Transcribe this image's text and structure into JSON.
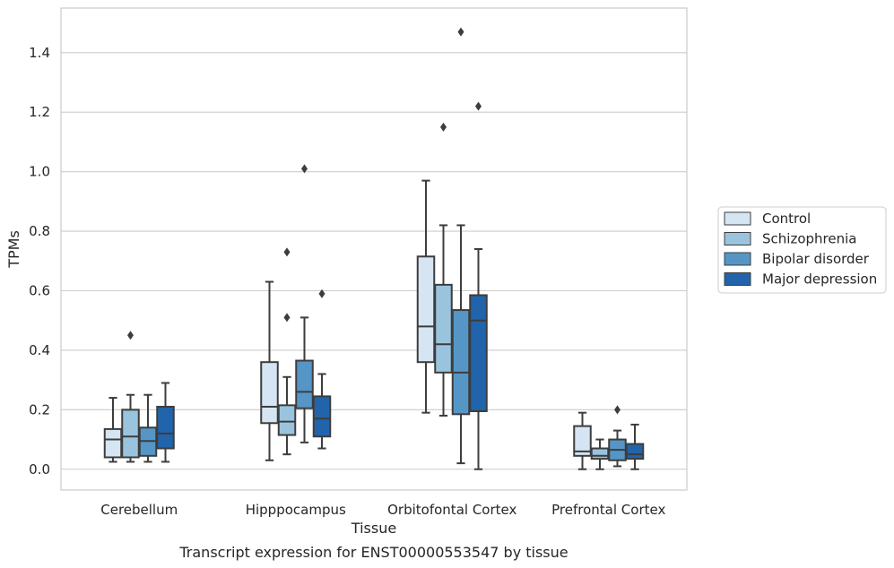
{
  "caption": "Transcript expression for ENST00000553547 by tissue",
  "chart_data": {
    "type": "boxplot",
    "xlabel": "Tissue",
    "ylabel": "TPMs",
    "ylim": [
      -0.07,
      1.55
    ],
    "yticks": [
      "0.0",
      "0.2",
      "0.4",
      "0.6",
      "0.8",
      "1.0",
      "1.2",
      "1.4"
    ],
    "grid": "horizontal",
    "legend_position": "right",
    "categories": [
      "Cerebellum",
      "Hipppocampus",
      "Orbitofontal Cortex",
      "Prefrontal Cortex"
    ],
    "series": [
      {
        "name": "Control",
        "color": "#d5e5f4",
        "boxes": [
          {
            "whislo": 0.025,
            "q1": 0.04,
            "med": 0.1,
            "q3": 0.135,
            "whishi": 0.24,
            "fliers": []
          },
          {
            "whislo": 0.03,
            "q1": 0.155,
            "med": 0.21,
            "q3": 0.36,
            "whishi": 0.63,
            "fliers": []
          },
          {
            "whislo": 0.19,
            "q1": 0.36,
            "med": 0.48,
            "q3": 0.715,
            "whishi": 0.97,
            "fliers": []
          },
          {
            "whislo": 0.0,
            "q1": 0.045,
            "med": 0.06,
            "q3": 0.145,
            "whishi": 0.19,
            "fliers": []
          }
        ]
      },
      {
        "name": "Schizophrenia",
        "color": "#9ac4de",
        "boxes": [
          {
            "whislo": 0.025,
            "q1": 0.04,
            "med": 0.11,
            "q3": 0.2,
            "whishi": 0.25,
            "fliers": [
              0.45
            ]
          },
          {
            "whislo": 0.05,
            "q1": 0.115,
            "med": 0.16,
            "q3": 0.215,
            "whishi": 0.31,
            "fliers": [
              0.51,
              0.73
            ]
          },
          {
            "whislo": 0.18,
            "q1": 0.325,
            "med": 0.42,
            "q3": 0.62,
            "whishi": 0.82,
            "fliers": [
              1.15
            ]
          },
          {
            "whislo": 0.0,
            "q1": 0.035,
            "med": 0.045,
            "q3": 0.07,
            "whishi": 0.1,
            "fliers": []
          }
        ]
      },
      {
        "name": "Bipolar disorder",
        "color": "#5596c6",
        "boxes": [
          {
            "whislo": 0.025,
            "q1": 0.045,
            "med": 0.095,
            "q3": 0.14,
            "whishi": 0.25,
            "fliers": []
          },
          {
            "whislo": 0.09,
            "q1": 0.205,
            "med": 0.26,
            "q3": 0.365,
            "whishi": 0.51,
            "fliers": [
              1.01
            ]
          },
          {
            "whislo": 0.02,
            "q1": 0.185,
            "med": 0.325,
            "q3": 0.535,
            "whishi": 0.82,
            "fliers": [
              1.47
            ]
          },
          {
            "whislo": 0.01,
            "q1": 0.03,
            "med": 0.065,
            "q3": 0.1,
            "whishi": 0.13,
            "fliers": [
              0.2
            ]
          }
        ]
      },
      {
        "name": "Major depression",
        "color": "#2164ab",
        "boxes": [
          {
            "whislo": 0.025,
            "q1": 0.07,
            "med": 0.12,
            "q3": 0.21,
            "whishi": 0.29,
            "fliers": []
          },
          {
            "whislo": 0.07,
            "q1": 0.11,
            "med": 0.17,
            "q3": 0.245,
            "whishi": 0.32,
            "fliers": [
              0.59
            ]
          },
          {
            "whislo": 0.0,
            "q1": 0.195,
            "med": 0.5,
            "q3": 0.585,
            "whishi": 0.74,
            "fliers": [
              1.22
            ]
          },
          {
            "whislo": 0.0,
            "q1": 0.035,
            "med": 0.05,
            "q3": 0.085,
            "whishi": 0.15,
            "fliers": []
          }
        ]
      }
    ]
  }
}
